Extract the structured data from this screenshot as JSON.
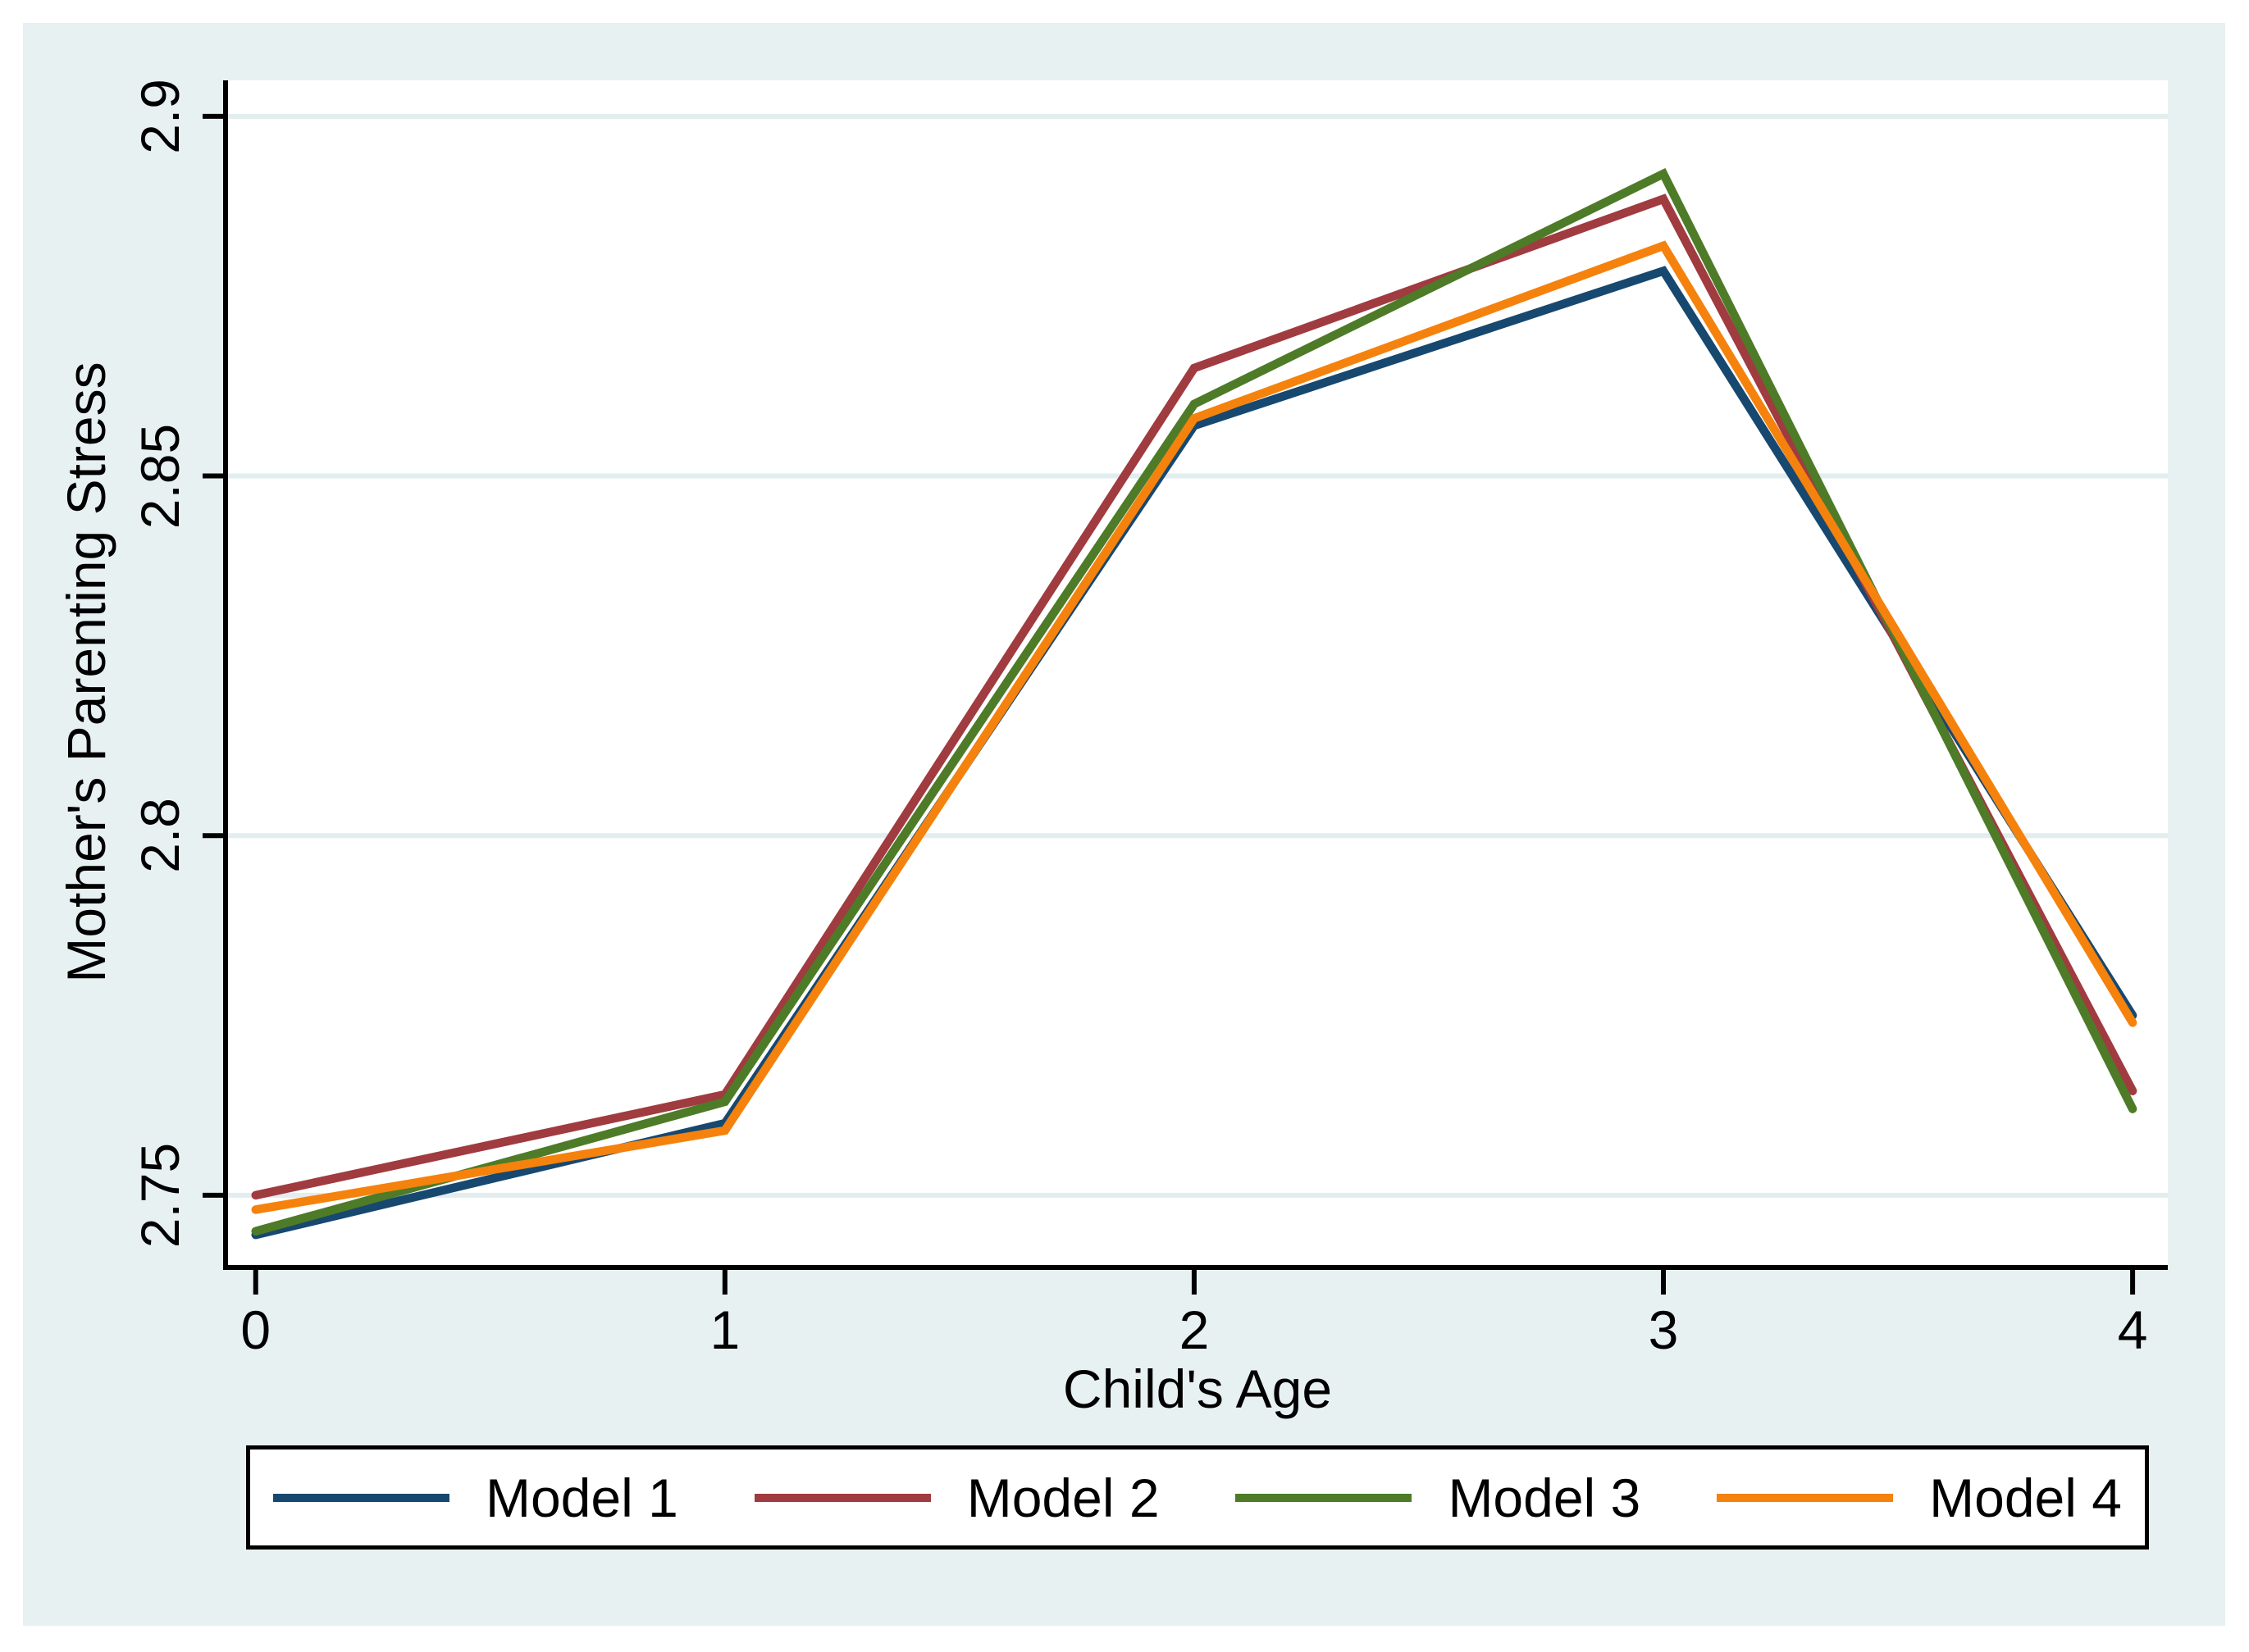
{
  "chart_data": {
    "type": "line",
    "title": "",
    "xlabel": "Child's Age",
    "ylabel": "Mother's Parenting Stress",
    "x": [
      0,
      1,
      2,
      3,
      4
    ],
    "xtick_labels": [
      "0",
      "1",
      "2",
      "3",
      "4"
    ],
    "yticks": [
      2.75,
      2.8,
      2.85,
      2.9
    ],
    "ytick_labels": [
      "2.75",
      "2.8",
      "2.85",
      "2.9"
    ],
    "xlim": [
      -0.059,
      4.075
    ],
    "ylim": [
      2.7403,
      2.905
    ],
    "grid": "horizontal-only",
    "legend_position": "bottom",
    "series": [
      {
        "label": "Model 1",
        "color": "#17486f",
        "values": [
          2.7445,
          2.76,
          2.857,
          2.8785,
          2.775
        ]
      },
      {
        "label": "Model 2",
        "color": "#a03b40",
        "values": [
          2.75,
          2.764,
          2.865,
          2.8885,
          2.7645
        ]
      },
      {
        "label": "Model 3",
        "color": "#4e7b27",
        "values": [
          2.745,
          2.763,
          2.86,
          2.892,
          2.762
        ]
      },
      {
        "label": "Model 4",
        "color": "#f5820d",
        "values": [
          2.748,
          2.759,
          2.858,
          2.882,
          2.774
        ]
      }
    ],
    "colors": {
      "figure_bg": "#e8f1f2",
      "plot_bg": "#ffffff",
      "grid": "#e2edef",
      "axis": "#000000",
      "text": "#000000",
      "legend_bg": "#ffffff",
      "legend_border": "#000000"
    }
  }
}
